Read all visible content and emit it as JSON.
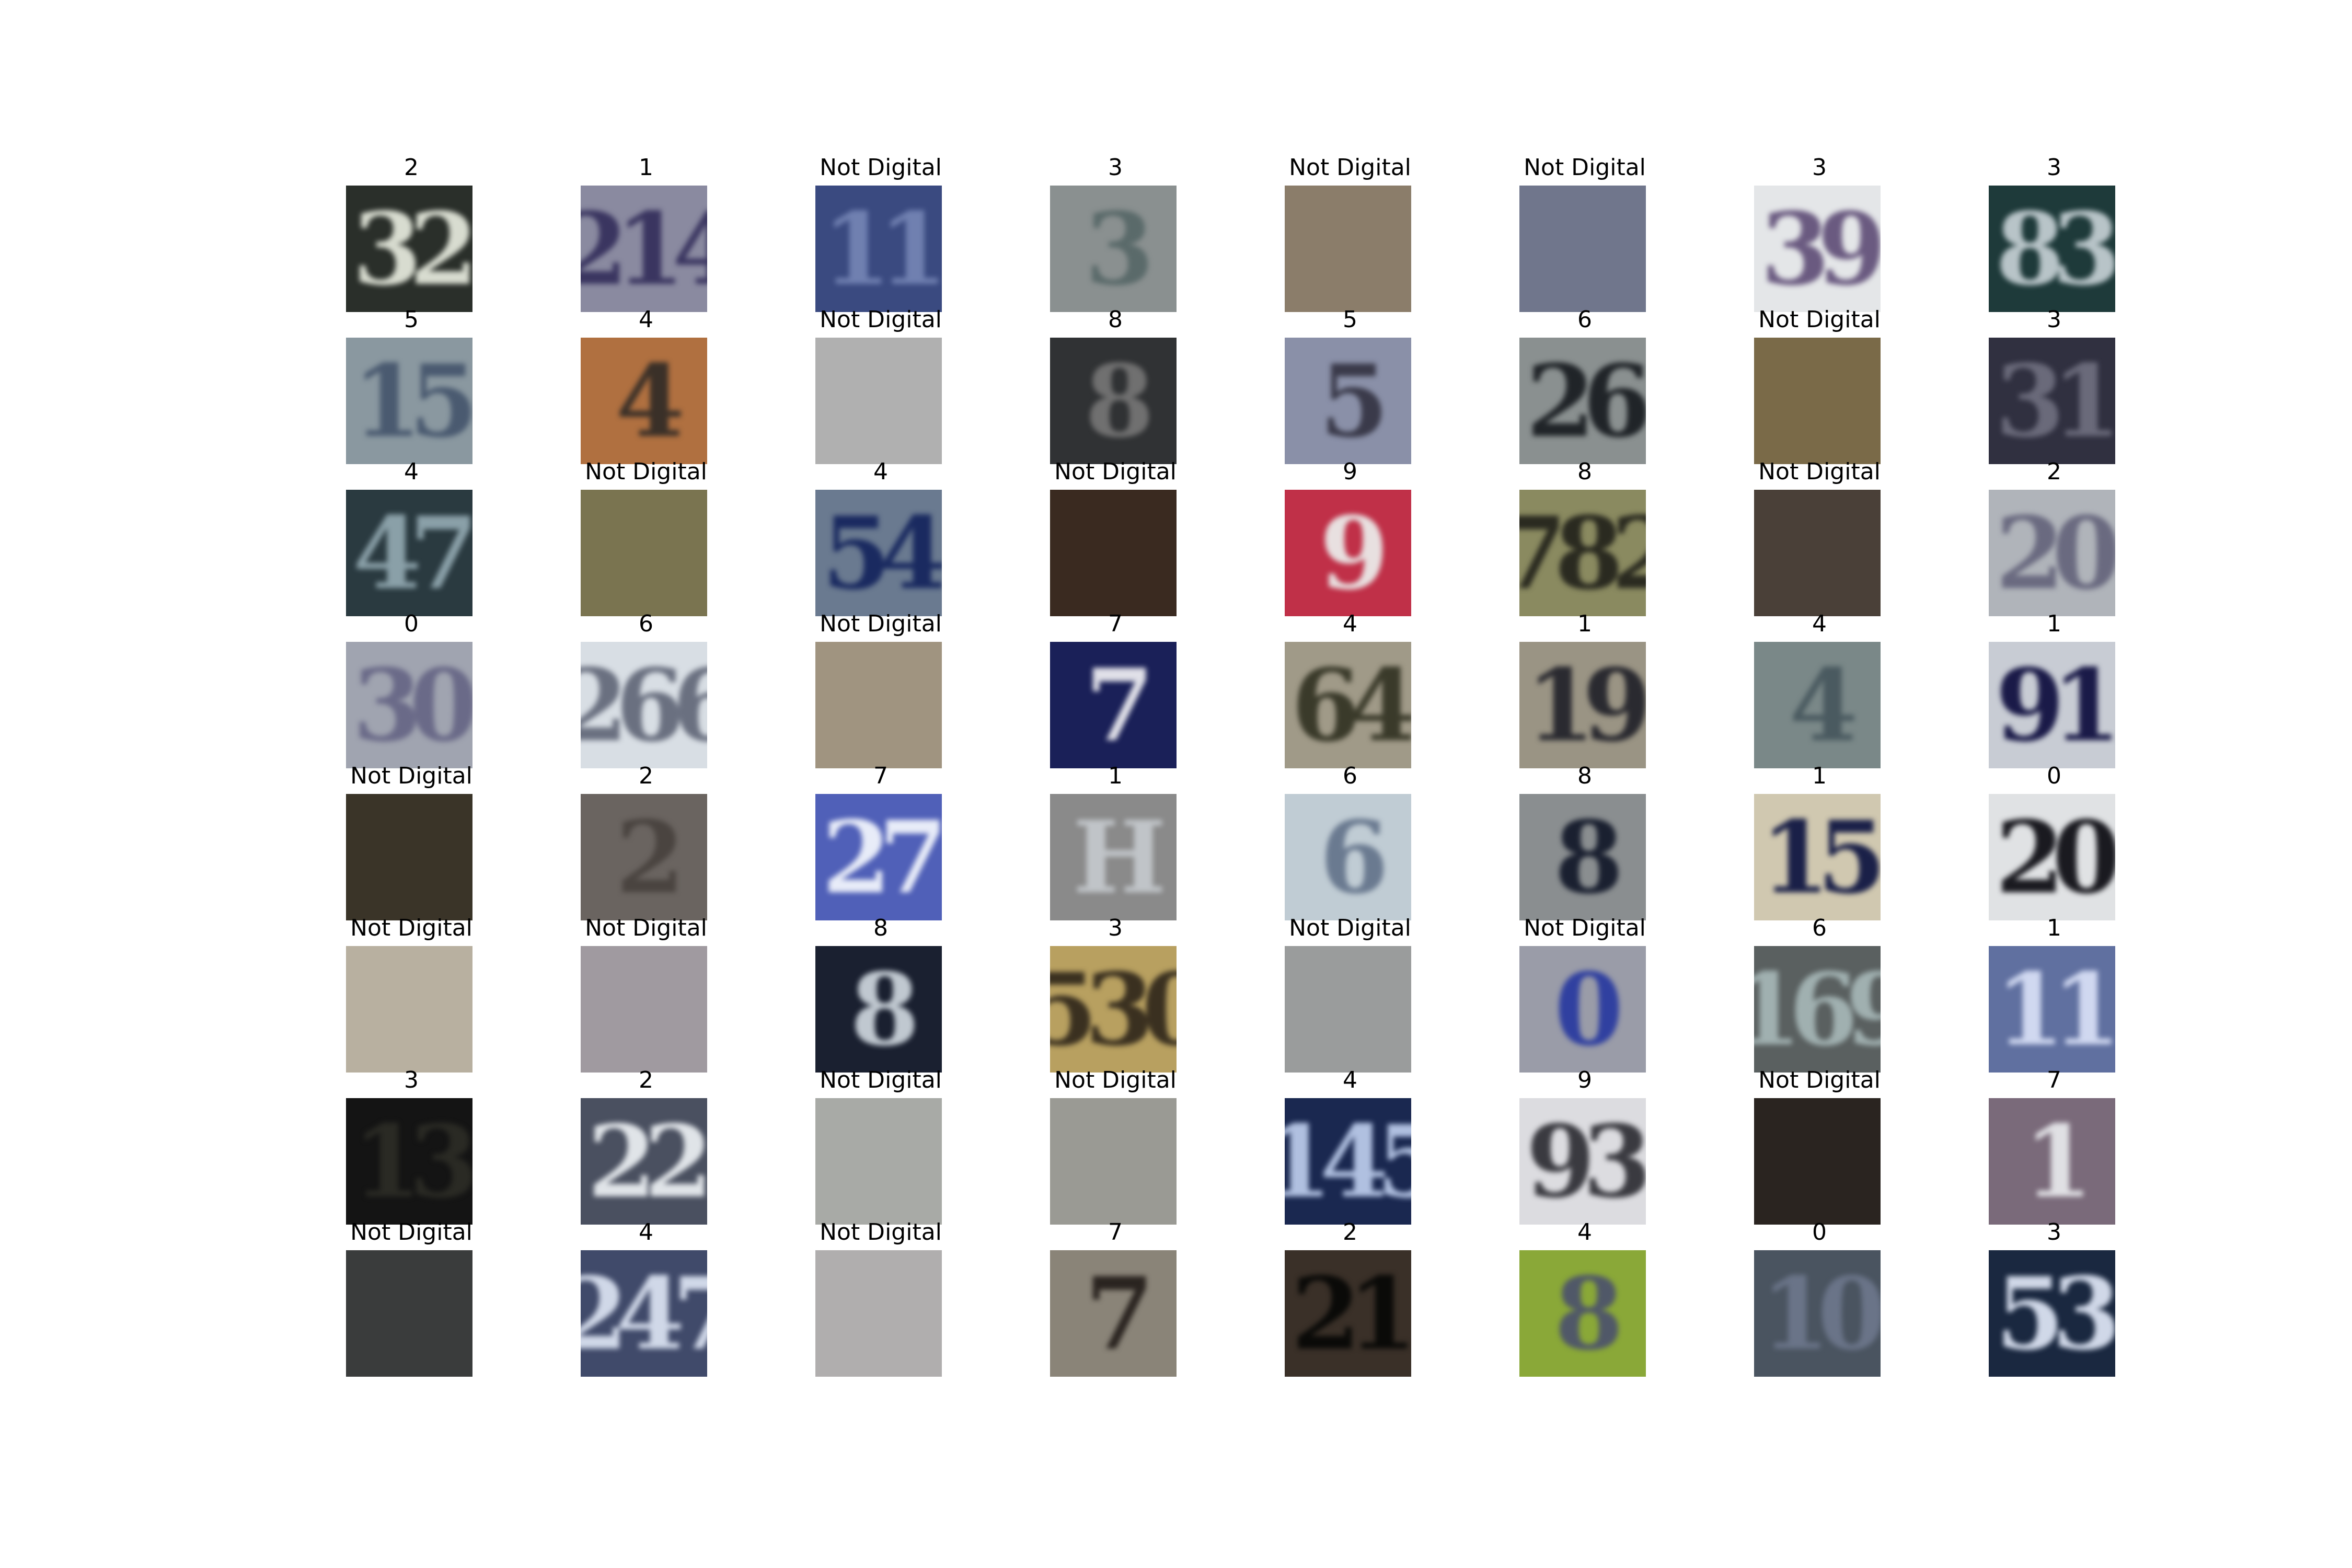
{
  "figure": {
    "rows": 8,
    "cols": 8,
    "panels": [
      {
        "label": "2",
        "bg": "#2a2f2a",
        "fg": "#d8dcd0",
        "text": "32"
      },
      {
        "label": "1",
        "bg": "#8a8aa0",
        "fg": "#3a3560",
        "text": "214"
      },
      {
        "label": "Not Digital",
        "bg": "#3a4a80",
        "fg": "#7080b0",
        "text": "11"
      },
      {
        "label": "3",
        "bg": "#8a9090",
        "fg": "#5a6a6a",
        "text": "3"
      },
      {
        "label": "Not Digital",
        "bg": "#8b7d6a",
        "fg": "#8b7d6a",
        "text": ""
      },
      {
        "label": "Not Digital",
        "bg": "#70768c",
        "fg": "#70768c",
        "text": ""
      },
      {
        "label": "3",
        "bg": "#e4e6e8",
        "fg": "#6a5a80",
        "text": "39"
      },
      {
        "label": "3",
        "bg": "#1e3a3a",
        "fg": "#b8c4c8",
        "text": "83"
      },
      {
        "label": "5",
        "bg": "#8a98a0",
        "fg": "#4a5a70",
        "text": "15"
      },
      {
        "label": "4",
        "bg": "#b07040",
        "fg": "#3a3028",
        "text": "4"
      },
      {
        "label": "Not Digital",
        "bg": "#b0b0b0",
        "fg": "#3a3a40",
        "text": ""
      },
      {
        "label": "8",
        "bg": "#303234",
        "fg": "#707070",
        "text": "8"
      },
      {
        "label": "5",
        "bg": "#8a90a8",
        "fg": "#3a3a4a",
        "text": "5"
      },
      {
        "label": "6",
        "bg": "#8a9090",
        "fg": "#202428",
        "text": "26"
      },
      {
        "label": "Not Digital",
        "bg": "#7a6a48",
        "fg": "#7a6a48",
        "text": ""
      },
      {
        "label": "3",
        "bg": "#303040",
        "fg": "#6a6a7a",
        "text": "31"
      },
      {
        "label": "4",
        "bg": "#2a3a40",
        "fg": "#8aa0a8",
        "text": "47"
      },
      {
        "label": "Not Digital",
        "bg": "#7a7450",
        "fg": "#7a7450",
        "text": ""
      },
      {
        "label": "4",
        "bg": "#6a7a90",
        "fg": "#1a2a60",
        "text": "54"
      },
      {
        "label": "Not Digital",
        "bg": "#3a2a20",
        "fg": "#3a2a20",
        "text": ""
      },
      {
        "label": "9",
        "bg": "#c03048",
        "fg": "#e8e0e0",
        "text": "9"
      },
      {
        "label": "8",
        "bg": "#8a8a60",
        "fg": "#2a2a20",
        "text": "782"
      },
      {
        "label": "Not Digital",
        "bg": "#4a4038",
        "fg": "#4a4038",
        "text": ""
      },
      {
        "label": "2",
        "bg": "#b0b4ba",
        "fg": "#6a6a80",
        "text": "20"
      },
      {
        "label": "0",
        "bg": "#a0a4b0",
        "fg": "#6a6a88",
        "text": "30"
      },
      {
        "label": "6",
        "bg": "#d8dee4",
        "fg": "#6a7080",
        "text": "266"
      },
      {
        "label": "Not Digital",
        "bg": "#a09480",
        "fg": "#a09480",
        "text": ""
      },
      {
        "label": "7",
        "bg": "#1a2058",
        "fg": "#e0e0e8",
        "text": "7"
      },
      {
        "label": "4",
        "bg": "#a09a88",
        "fg": "#3a3a2a",
        "text": "64"
      },
      {
        "label": "1",
        "bg": "#9a9484",
        "fg": "#2a2a30",
        "text": "19"
      },
      {
        "label": "4",
        "bg": "#7a8888",
        "fg": "#4a5a60",
        "text": "4"
      },
      {
        "label": "1",
        "bg": "#c8ccd4",
        "fg": "#1a1a48",
        "text": "91"
      },
      {
        "label": "Not Digital",
        "bg": "#3a3428",
        "fg": "#d0d8e8",
        "text": ""
      },
      {
        "label": "2",
        "bg": "#6a6460",
        "fg": "#4a4440",
        "text": "2"
      },
      {
        "label": "7",
        "bg": "#5060b8",
        "fg": "#e8ecf8",
        "text": "27"
      },
      {
        "label": "1",
        "bg": "#8a8a8a",
        "fg": "#c0c4c8",
        "text": "H"
      },
      {
        "label": "6",
        "bg": "#c0ccd4",
        "fg": "#6a7a90",
        "text": "6"
      },
      {
        "label": "8",
        "bg": "#8a8e90",
        "fg": "#1a2030",
        "text": "8"
      },
      {
        "label": "1",
        "bg": "#d0c8b0",
        "fg": "#1a2048",
        "text": "15"
      },
      {
        "label": "0",
        "bg": "#e0e2e4",
        "fg": "#1a1a20",
        "text": "20"
      },
      {
        "label": "Not Digital",
        "bg": "#b8b0a0",
        "fg": "#b8b0a0",
        "text": ""
      },
      {
        "label": "Not Digital",
        "bg": "#a09aa0",
        "fg": "#a09aa0",
        "text": ""
      },
      {
        "label": "8",
        "bg": "#1a2030",
        "fg": "#c0c8d0",
        "text": "8"
      },
      {
        "label": "3",
        "bg": "#b8a060",
        "fg": "#3a3020",
        "text": "530"
      },
      {
        "label": "Not Digital",
        "bg": "#9a9c9c",
        "fg": "#9a9c9c",
        "text": ""
      },
      {
        "label": "Not Digital",
        "bg": "#9a9ca8",
        "fg": "#3040a0",
        "text": "0"
      },
      {
        "label": "6",
        "bg": "#5a6060",
        "fg": "#a0b0b0",
        "text": "169"
      },
      {
        "label": "1",
        "bg": "#6070a0",
        "fg": "#d0d8f0",
        "text": "11"
      },
      {
        "label": "3",
        "bg": "#141414",
        "fg": "#2a2a24",
        "text": "13"
      },
      {
        "label": "2",
        "bg": "#4a5060",
        "fg": "#e0e4e8",
        "text": "22"
      },
      {
        "label": "Not Digital",
        "bg": "#a8aaa6",
        "fg": "#a8aaa6",
        "text": ""
      },
      {
        "label": "Not Digital",
        "bg": "#9a9a94",
        "fg": "#9a9a94",
        "text": ""
      },
      {
        "label": "4",
        "bg": "#1a2850",
        "fg": "#b0c0e0",
        "text": "145"
      },
      {
        "label": "9",
        "bg": "#dcdce0",
        "fg": "#3a3a40",
        "text": "93"
      },
      {
        "label": "Not Digital",
        "bg": "#2a2420",
        "fg": "#2a2420",
        "text": ""
      },
      {
        "label": "7",
        "bg": "#7a6a7a",
        "fg": "#e0e0e4",
        "text": "1"
      },
      {
        "label": "Not Digital",
        "bg": "#3a3c3c",
        "fg": "#3a3c3c",
        "text": ""
      },
      {
        "label": "4",
        "bg": "#404a6a",
        "fg": "#d0d8e8",
        "text": "247"
      },
      {
        "label": "Not Digital",
        "bg": "#b0aeae",
        "fg": "#d8dcdc",
        "text": ""
      },
      {
        "label": "7",
        "bg": "#8a8478",
        "fg": "#2a2420",
        "text": "7"
      },
      {
        "label": "2",
        "bg": "#3a3028",
        "fg": "#0a0a08",
        "text": "21"
      },
      {
        "label": "4",
        "bg": "#8aa838",
        "fg": "#505868",
        "text": "8"
      },
      {
        "label": "0",
        "bg": "#4a5460",
        "fg": "#6a7488",
        "text": "10"
      },
      {
        "label": "3",
        "bg": "#1a2840",
        "fg": "#d0d8e8",
        "text": "53"
      }
    ]
  }
}
